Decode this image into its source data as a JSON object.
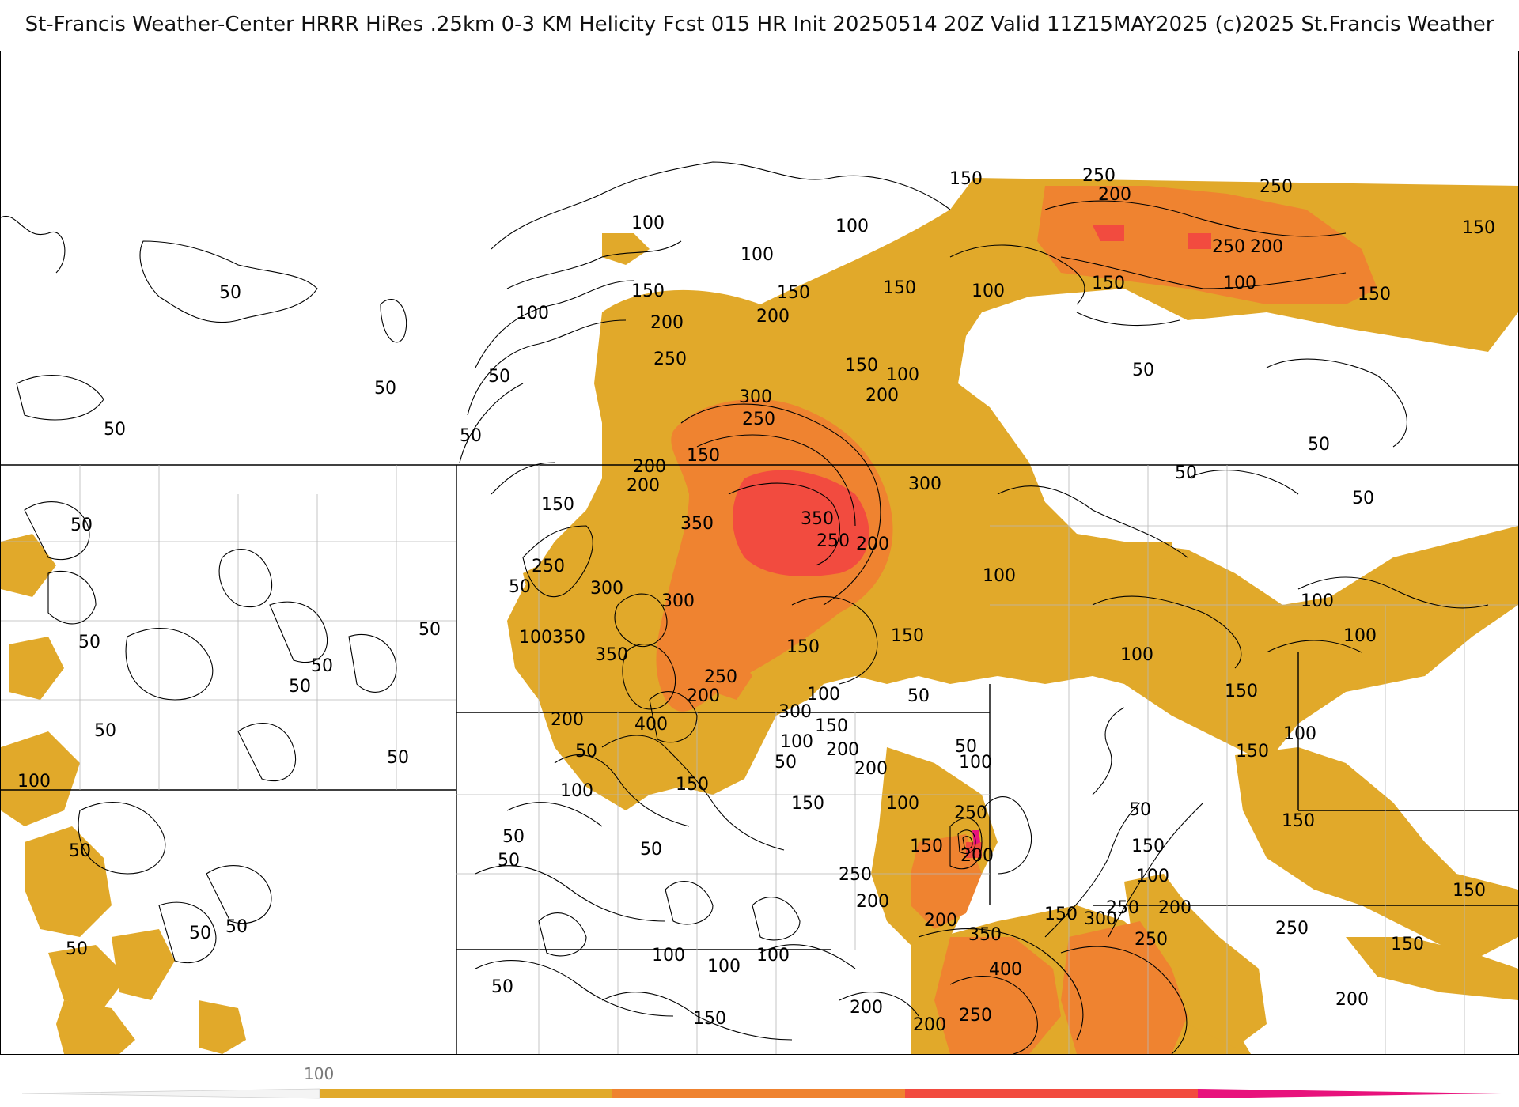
{
  "header": {
    "title": "St-Francis Weather-Center HRRR HiRes .25km 0-3 KM Helicity Fcst 015 HR Init 20250514 20Z  Valid 11Z15MAY2025    (c)2025 St.Francis Weather"
  },
  "legend": {
    "first_tick_label": "100",
    "colors": [
      "#e1a92a",
      "#ef8330",
      "#f24b3f",
      "#e8127c"
    ]
  },
  "map": {
    "fill_colors": {
      "level_100": "#e1a92a",
      "level_200": "#ef8330",
      "level_300": "#f24b3f",
      "level_400": "#e8127c"
    },
    "contour_labels": [
      "50",
      "50",
      "50",
      "50",
      "50",
      "50",
      "50",
      "50",
      "50",
      "50",
      "50",
      "50",
      "50",
      "50",
      "50",
      "50",
      "50",
      "50",
      "50",
      "50",
      "50",
      "50",
      "50",
      "50",
      "50",
      "50",
      "50",
      "50",
      "50",
      "50",
      "100",
      "100",
      "100",
      "100",
      "100",
      "100",
      "100",
      "100",
      "100",
      "100",
      "100",
      "100",
      "100",
      "100",
      "100",
      "100",
      "100",
      "100",
      "100",
      "100",
      "100",
      "100",
      "100",
      "150",
      "150",
      "150",
      "150",
      "150",
      "150",
      "150",
      "150",
      "150",
      "150",
      "150",
      "150",
      "150",
      "150",
      "150",
      "150",
      "150",
      "150",
      "150",
      "150",
      "150",
      "150",
      "150",
      "150",
      "200",
      "200",
      "200",
      "200",
      "200",
      "200",
      "200",
      "200",
      "200",
      "200",
      "200",
      "200",
      "200",
      "200",
      "200",
      "200",
      "200",
      "200",
      "200",
      "250",
      "250",
      "250",
      "250",
      "250",
      "250",
      "250",
      "250",
      "250",
      "250",
      "250",
      "250",
      "250",
      "250",
      "300",
      "300",
      "300",
      "300",
      "300",
      "300",
      "350",
      "350",
      "350",
      "350",
      "350",
      "400"
    ]
  }
}
